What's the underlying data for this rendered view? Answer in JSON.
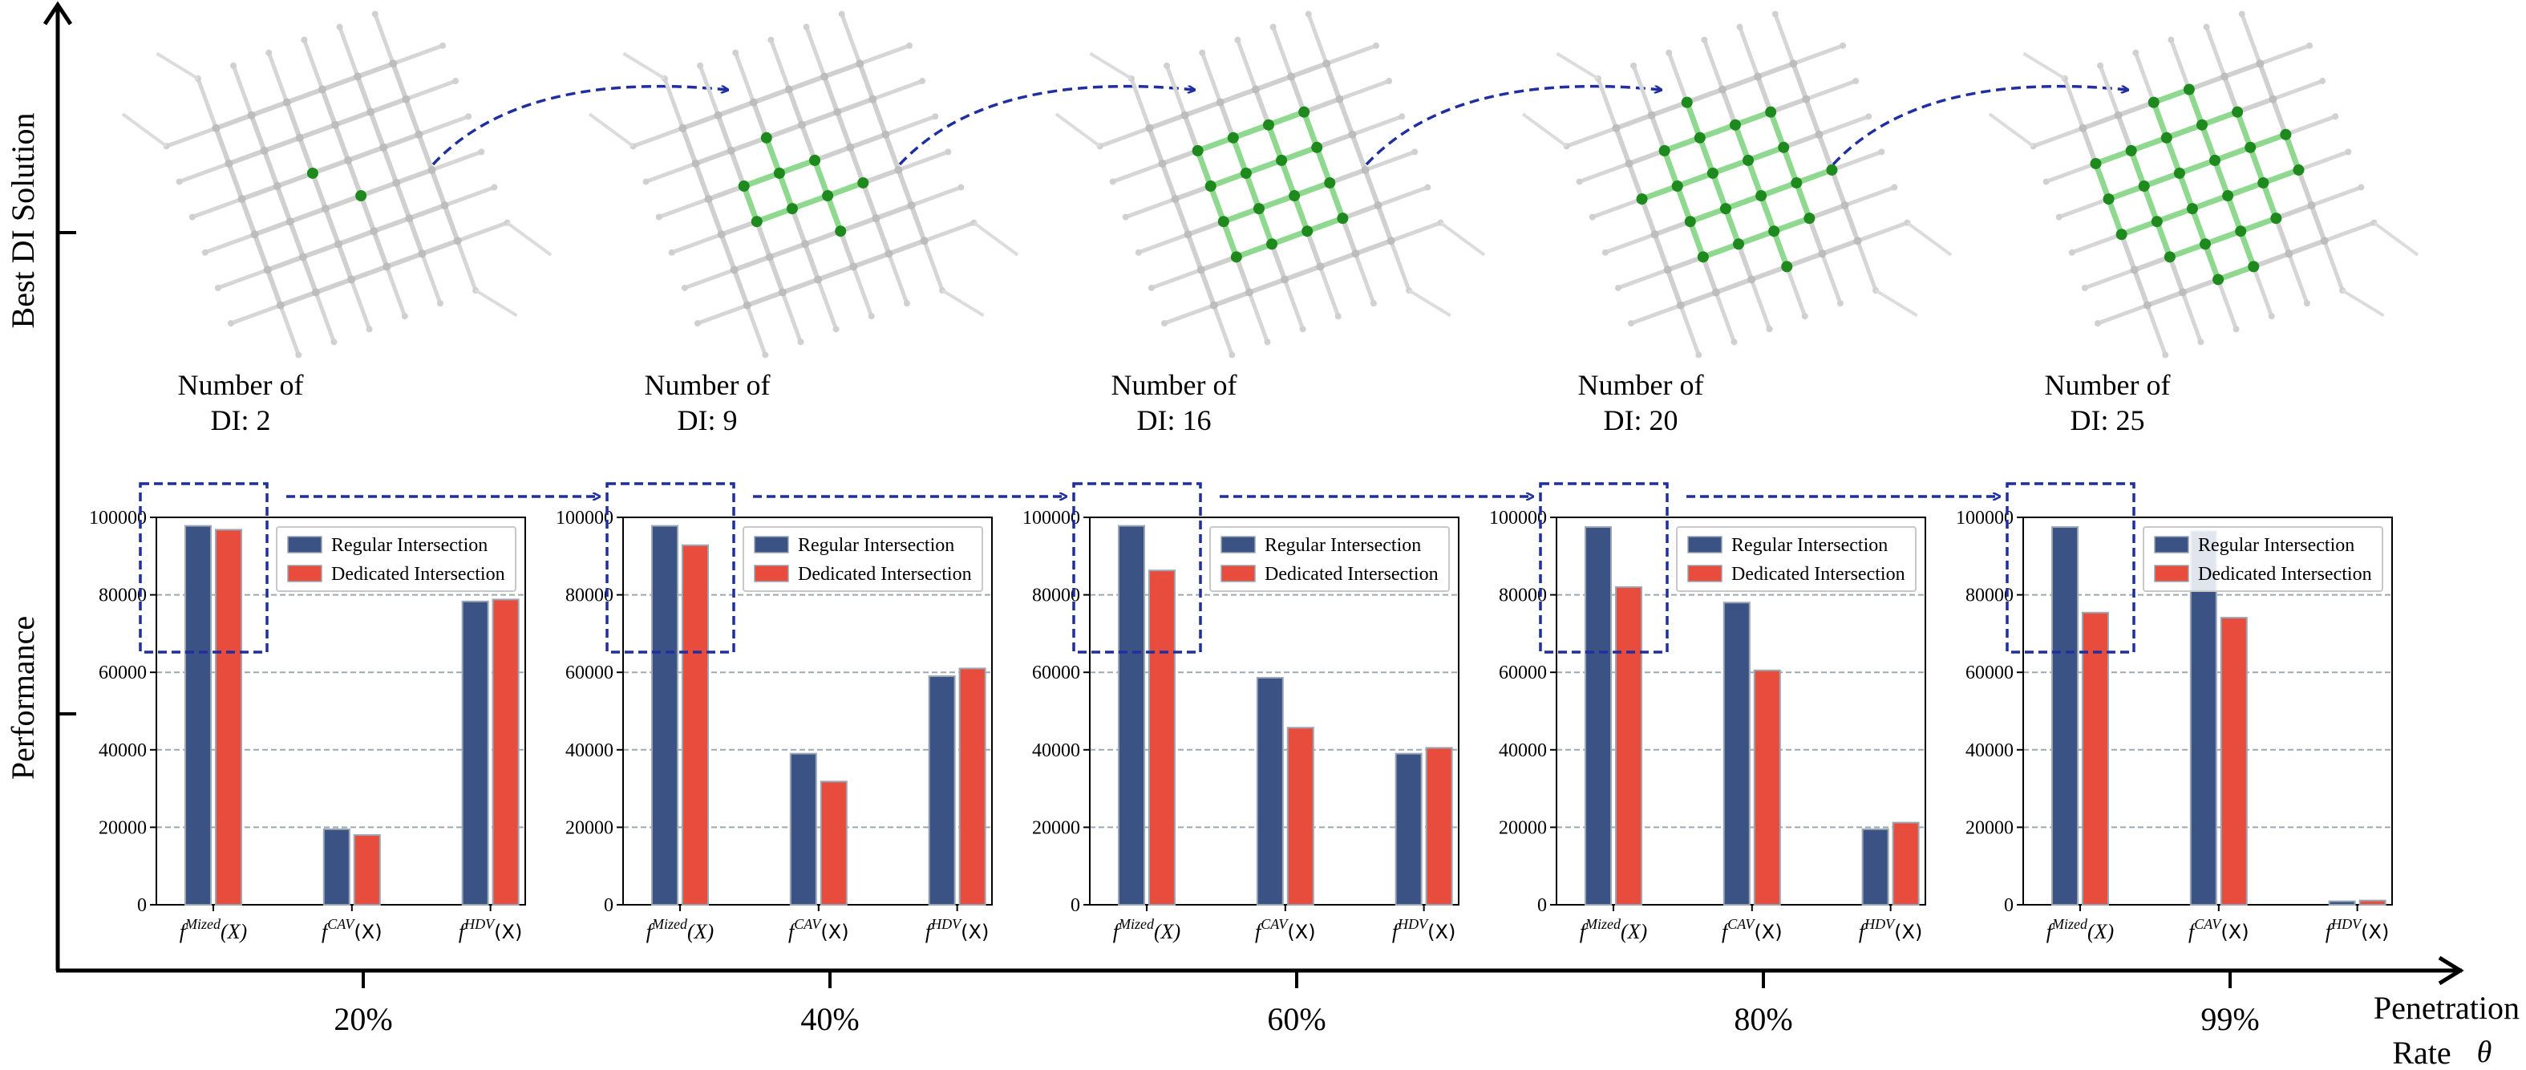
{
  "figure": {
    "y_axis_upper_label": "Best DI Solution",
    "y_axis_lower_label": "Performance",
    "x_axis_label_line1": "Penetration",
    "x_axis_label_line2": "Rate",
    "x_axis_symbol": "θ"
  },
  "network_caption_prefix_line1": "Number of",
  "networks": [
    {
      "caption_line2": "DI: 2",
      "di_count": 2
    },
    {
      "caption_line2": "DI: 9",
      "di_count": 9
    },
    {
      "caption_line2": "DI: 16",
      "di_count": 16
    },
    {
      "caption_line2": "DI: 20",
      "di_count": 20
    },
    {
      "caption_line2": "DI: 25",
      "di_count": 25
    }
  ],
  "colors": {
    "regular": "#3b5285",
    "dedicated": "#e74c3c",
    "highlight_dashes": "#1f2fa0",
    "grid": "#9aaab0",
    "node_highlight": "#1e8a1e",
    "link_highlight": "#8fd88f",
    "node_plain": "#bdbdbd"
  },
  "chart_data": [
    {
      "type": "bar",
      "penetration_rate": "20%",
      "categories": [
        "f^{Mized}(X)",
        "f^{CAV}(X)",
        "f^{HDV}(X)"
      ],
      "series": [
        {
          "name": "Regular Intersection",
          "values": [
            97800,
            19500,
            78300
          ]
        },
        {
          "name": "Dedicated Intersection",
          "values": [
            96800,
            18000,
            78800
          ]
        }
      ],
      "ylim": [
        0,
        100000
      ],
      "yticks": [
        "0",
        "20000",
        "40000",
        "60000",
        "80000",
        "100000"
      ],
      "legend": "top-right"
    },
    {
      "type": "bar",
      "penetration_rate": "40%",
      "categories": [
        "f^{Mized}(X)",
        "f^{CAV}(X)",
        "f^{HDV}(X)"
      ],
      "series": [
        {
          "name": "Regular Intersection",
          "values": [
            97800,
            39000,
            59000
          ]
        },
        {
          "name": "Dedicated Intersection",
          "values": [
            92800,
            31800,
            61000
          ]
        }
      ],
      "ylim": [
        0,
        100000
      ],
      "yticks": [
        "0",
        "20000",
        "40000",
        "60000",
        "80000",
        "100000"
      ],
      "legend": "top-right"
    },
    {
      "type": "bar",
      "penetration_rate": "60%",
      "categories": [
        "f^{Mized}(X)",
        "f^{CAV}(X)",
        "f^{HDV}(X)"
      ],
      "series": [
        {
          "name": "Regular Intersection",
          "values": [
            97800,
            58600,
            39000
          ]
        },
        {
          "name": "Dedicated Intersection",
          "values": [
            86300,
            45700,
            40500
          ]
        }
      ],
      "ylim": [
        0,
        100000
      ],
      "yticks": [
        "0",
        "20000",
        "40000",
        "60000",
        "80000",
        "100000"
      ],
      "legend": "top-right"
    },
    {
      "type": "bar",
      "penetration_rate": "80%",
      "categories": [
        "f^{Mized}(X)",
        "f^{CAV}(X)",
        "f^{HDV}(X)"
      ],
      "series": [
        {
          "name": "Regular Intersection",
          "values": [
            97500,
            78000,
            19500
          ]
        },
        {
          "name": "Dedicated Intersection",
          "values": [
            82000,
            60500,
            21200
          ]
        }
      ],
      "ylim": [
        0,
        100000
      ],
      "yticks": [
        "0",
        "20000",
        "40000",
        "60000",
        "80000",
        "100000"
      ],
      "legend": "top-right"
    },
    {
      "type": "bar",
      "penetration_rate": "99%",
      "categories": [
        "f^{Mized}(X)",
        "f^{CAV}(X)",
        "f^{HDV}(X)"
      ],
      "series": [
        {
          "name": "Regular Intersection",
          "values": [
            97500,
            96500,
            900
          ]
        },
        {
          "name": "Dedicated Intersection",
          "values": [
            75400,
            74100,
            1100
          ]
        }
      ],
      "ylim": [
        0,
        100000
      ],
      "yticks": [
        "0",
        "20000",
        "40000",
        "60000",
        "80000",
        "100000"
      ],
      "legend": "top-right"
    }
  ]
}
